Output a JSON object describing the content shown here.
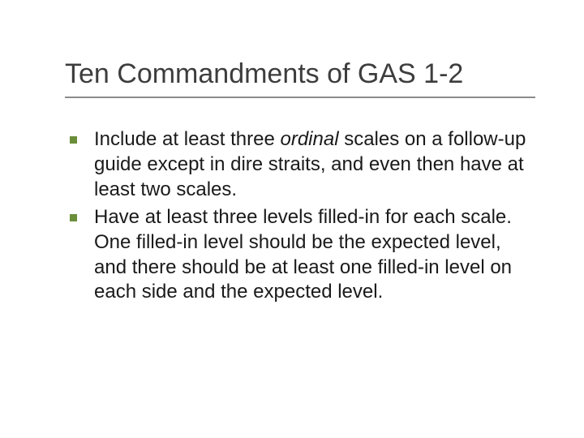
{
  "slide": {
    "title": "Ten Commandments of GAS 1-2",
    "title_color": "#3d3d3d",
    "title_fontsize": 34,
    "rule_color": "#8c8c8c",
    "background_color": "#ffffff",
    "bullet_color": "#6b8e3a",
    "body_fontsize": 24,
    "body_color": "#1a1a1a",
    "items": [
      {
        "pre": "Include at least three ",
        "em": "ordinal",
        "post": " scales on a follow-up guide except in dire straits, and even then have at least two scales."
      },
      {
        "pre": "Have at least three levels filled-in for each scale. One filled-in level should be the expected level, and there should be at least one filled-in level on each side and the expected level.",
        "em": "",
        "post": ""
      }
    ]
  }
}
